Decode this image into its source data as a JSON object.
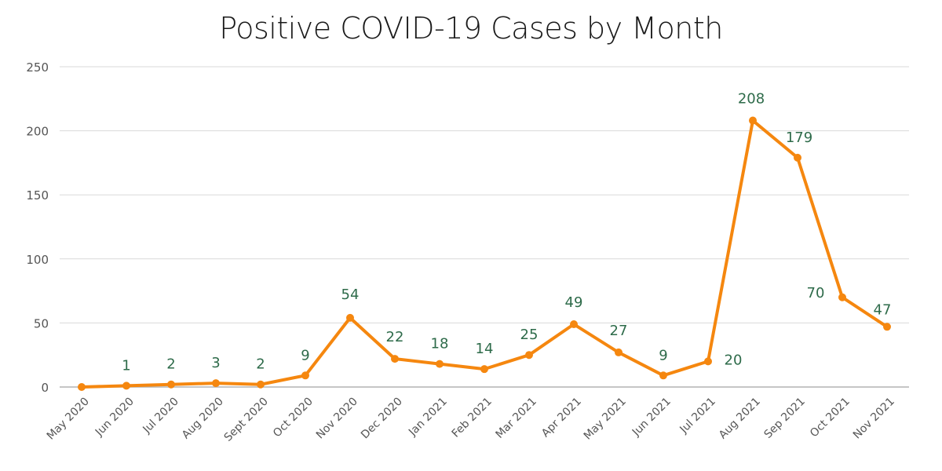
{
  "chart_data": {
    "type": "line",
    "title": "Positive COVID-19 Cases by Month",
    "xlabel": "",
    "ylabel": "",
    "ylim": [
      0,
      250
    ],
    "yticks": [
      0,
      50,
      100,
      150,
      200,
      250
    ],
    "grid": true,
    "legend": "none",
    "categories": [
      "May 2020",
      "Jun 2020",
      "Jul 2020",
      "Aug 2020",
      "Sept 2020",
      "Oct 2020",
      "Nov 2020",
      "Dec 2020",
      "Jan 2021",
      "Feb 2021",
      "Mar 2021",
      "Apr 2021",
      "May 2021",
      "Jun 2021",
      "Jul 2021",
      "Aug 2021",
      "Sep 2021",
      "Oct 2021",
      "Nov 2021"
    ],
    "values": [
      0,
      1,
      2,
      3,
      2,
      9,
      54,
      22,
      18,
      14,
      25,
      49,
      27,
      9,
      20,
      208,
      179,
      70,
      47
    ],
    "data_labels": [
      "",
      "1",
      "2",
      "3",
      "2",
      "9",
      "54",
      "22",
      "18",
      "14",
      "25",
      "49",
      "27",
      "9",
      "20",
      "208",
      "179",
      "70",
      "47"
    ],
    "colors": {
      "line": "#f5870f",
      "data_label": "#2e6b4a",
      "grid": "#d9d9d9",
      "axis_text": "#555555"
    }
  }
}
